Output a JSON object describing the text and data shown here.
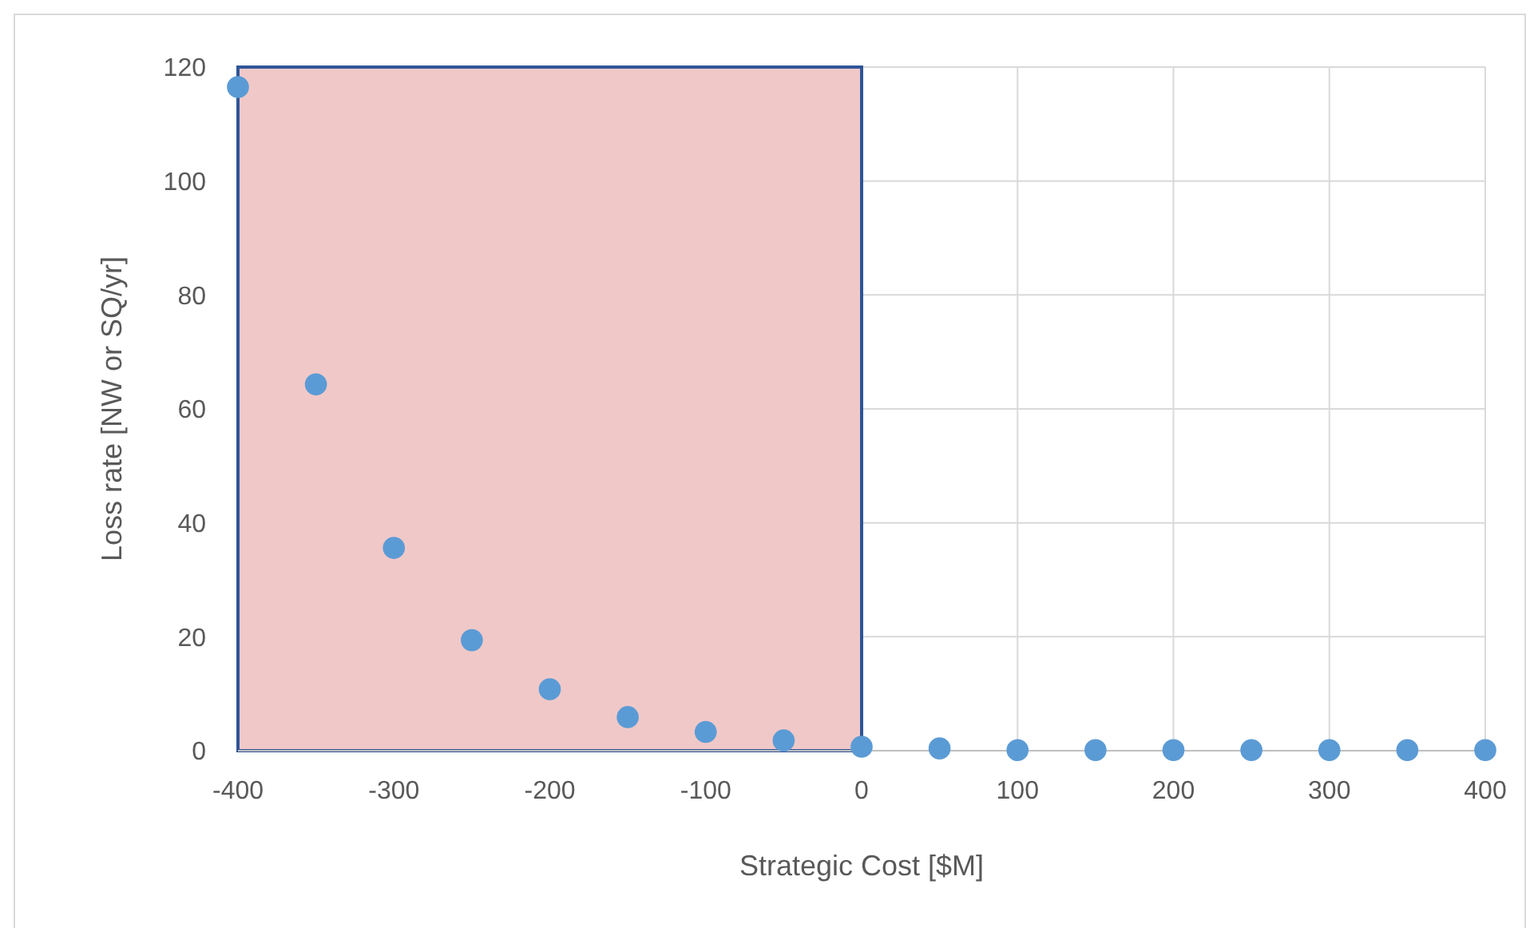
{
  "chart_data": {
    "type": "scatter",
    "xlabel": "Strategic Cost [$M]",
    "ylabel": "Loss rate [NW or SQ/yr]",
    "x": [
      -400,
      -350,
      -300,
      -250,
      -200,
      -150,
      -100,
      -50,
      0,
      50,
      100,
      150,
      200,
      250,
      300,
      350,
      400
    ],
    "series": [
      {
        "color": "#5b9bd5",
        "values": [
          116.5,
          64.3,
          35.6,
          19.4,
          10.8,
          5.9,
          3.3,
          1.8,
          0.7,
          0.4,
          0.1,
          0.1,
          0.1,
          0.1,
          0.1,
          0.1,
          0.1
        ]
      }
    ],
    "xlim": [
      -400,
      400
    ],
    "xticks": [
      -400,
      -300,
      -200,
      -100,
      0,
      100,
      200,
      300,
      400
    ],
    "ylim": [
      0,
      120
    ],
    "yticks": [
      0,
      20,
      40,
      60,
      80,
      100,
      120
    ],
    "grid": true,
    "marker": "circle",
    "bands": [
      {
        "axis": "x",
        "from": -400,
        "to": 0,
        "color": "#f0c8c8"
      }
    ]
  }
}
